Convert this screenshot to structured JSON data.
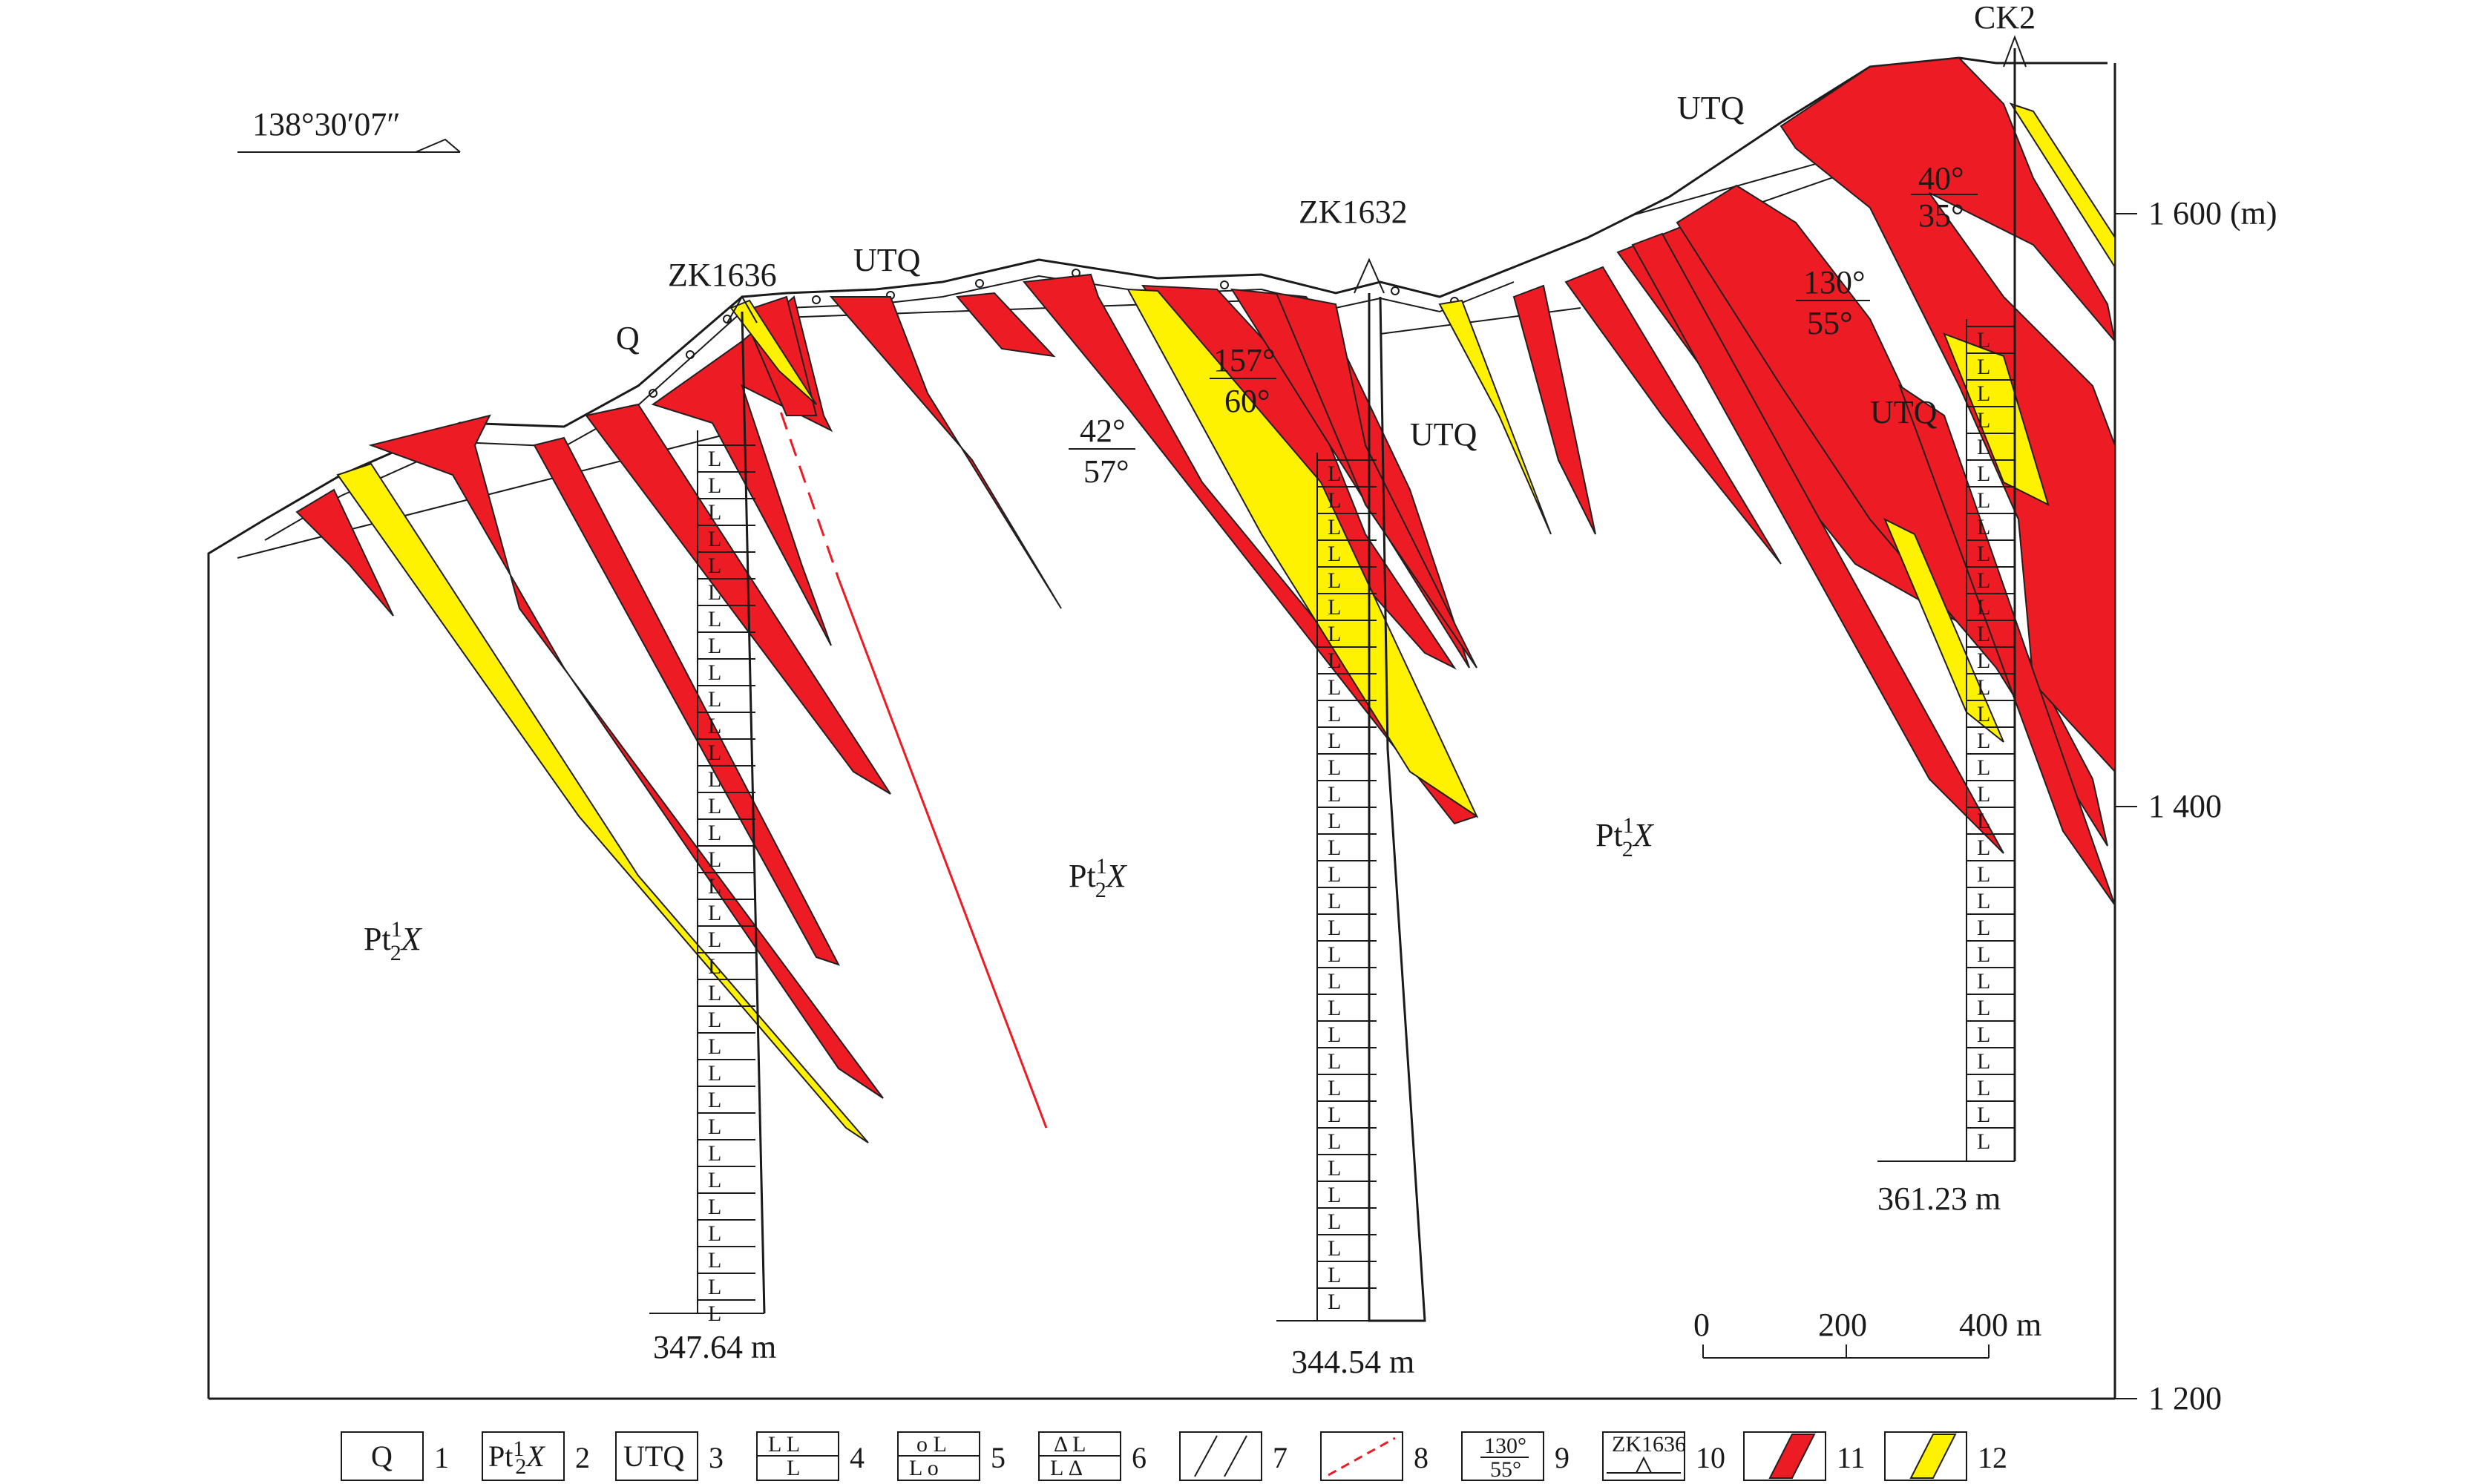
{
  "title_coordinate": "138°30′07″",
  "labels": {
    "formation": "Pt",
    "formation_sup": "1",
    "formation_sub": "2",
    "formation_tail": "X",
    "quaternary": "Q",
    "utq": "UTQ"
  },
  "boreholes": [
    {
      "id": "ZK1636",
      "depth": "347.64 m"
    },
    {
      "id": "ZK1632",
      "depth": "344.54 m"
    },
    {
      "id": "CK2",
      "depth": "361.23 m"
    }
  ],
  "attitudes": [
    {
      "azimuth": "42°",
      "dip": "57°"
    },
    {
      "azimuth": "157°",
      "dip": "60°"
    },
    {
      "azimuth": "130°",
      "dip": "55°"
    },
    {
      "azimuth": "40°",
      "dip": "35°"
    }
  ],
  "elevation_axis": {
    "ticks": [
      "1 200",
      "1 400",
      "1 600 (m)"
    ],
    "values": [
      1200,
      1400,
      1600
    ]
  },
  "scale_bar": {
    "ticks": [
      "0",
      "200",
      "400 m"
    ]
  },
  "legend": {
    "items": [
      {
        "number": "1",
        "symbol": "Q"
      },
      {
        "number": "2",
        "symbol": "Pt₂¹X"
      },
      {
        "number": "3",
        "symbol": "UTQ"
      },
      {
        "number": "4",
        "symbol": "basalt-pattern"
      },
      {
        "number": "5",
        "symbol": "amygdaloidal-pattern"
      },
      {
        "number": "6",
        "symbol": "breccia-pattern"
      },
      {
        "number": "7",
        "symbol": "lithology-pattern"
      },
      {
        "number": "8",
        "symbol": "fault-line"
      },
      {
        "number": "9",
        "symbol": "attitude-symbol"
      },
      {
        "number": "10",
        "symbol": "borehole-symbol"
      },
      {
        "number": "11",
        "symbol": "red-orebody"
      },
      {
        "number": "12",
        "symbol": "yellow-orebody"
      }
    ],
    "attitude_sample": {
      "azimuth": "130°",
      "dip": "55°"
    },
    "borehole_sample": "ZK1636"
  },
  "colors": {
    "red_orebody": "#ed1c24",
    "yellow_orebody": "#fff200",
    "ink": "#1a1a1a"
  }
}
